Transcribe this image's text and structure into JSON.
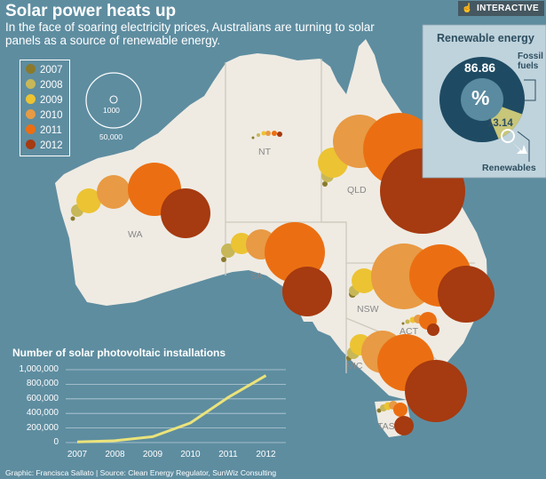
{
  "header": {
    "title": "Solar power heats up",
    "subtitle": "In the face of soaring electricity prices, Australians are turning to solar panels as a source of renewable energy.",
    "badge": "INTERACTIVE"
  },
  "legend": {
    "items": [
      {
        "year": "2007",
        "color": "#8b7a2b"
      },
      {
        "year": "2008",
        "color": "#c7b758"
      },
      {
        "year": "2009",
        "color": "#ecc332"
      },
      {
        "year": "2010",
        "color": "#e89a44"
      },
      {
        "year": "2011",
        "color": "#eb6f12"
      },
      {
        "year": "2012",
        "color": "#a63a10"
      }
    ]
  },
  "size_scale": {
    "small_label": "1000",
    "large_label": "50,000"
  },
  "regions": {
    "WA": "WA",
    "NT": "NT",
    "QLD": "QLD",
    "SA": "SA",
    "NSW": "NSW",
    "ACT": "ACT",
    "VIC": "VIC",
    "TAS": "TAS"
  },
  "renewable_panel": {
    "title": "Renewable energy",
    "fossil_value": "86.86",
    "renewable_value": "13.14",
    "symbol": "%",
    "fossil_label": "Fossil fuels",
    "renewable_label": "Renewables",
    "fossil_share": 86.86,
    "renewable_share": 13.14
  },
  "chart_data": {
    "type": "line",
    "title": "Number of solar photovoltaic installations",
    "x": [
      "2007",
      "2008",
      "2009",
      "2010",
      "2011",
      "2012"
    ],
    "y_ticks": [
      "1,000,000",
      "800,000",
      "600,000",
      "400,000",
      "200,000",
      "0"
    ],
    "ylim": [
      0,
      1000000
    ],
    "series": [
      {
        "values": [
          8000,
          25000,
          80000,
          270000,
          620000,
          920000
        ]
      }
    ]
  },
  "credit": "Graphic: Francisca Sallato | Source: Clean Energy Regulator, SunWiz Consulting"
}
